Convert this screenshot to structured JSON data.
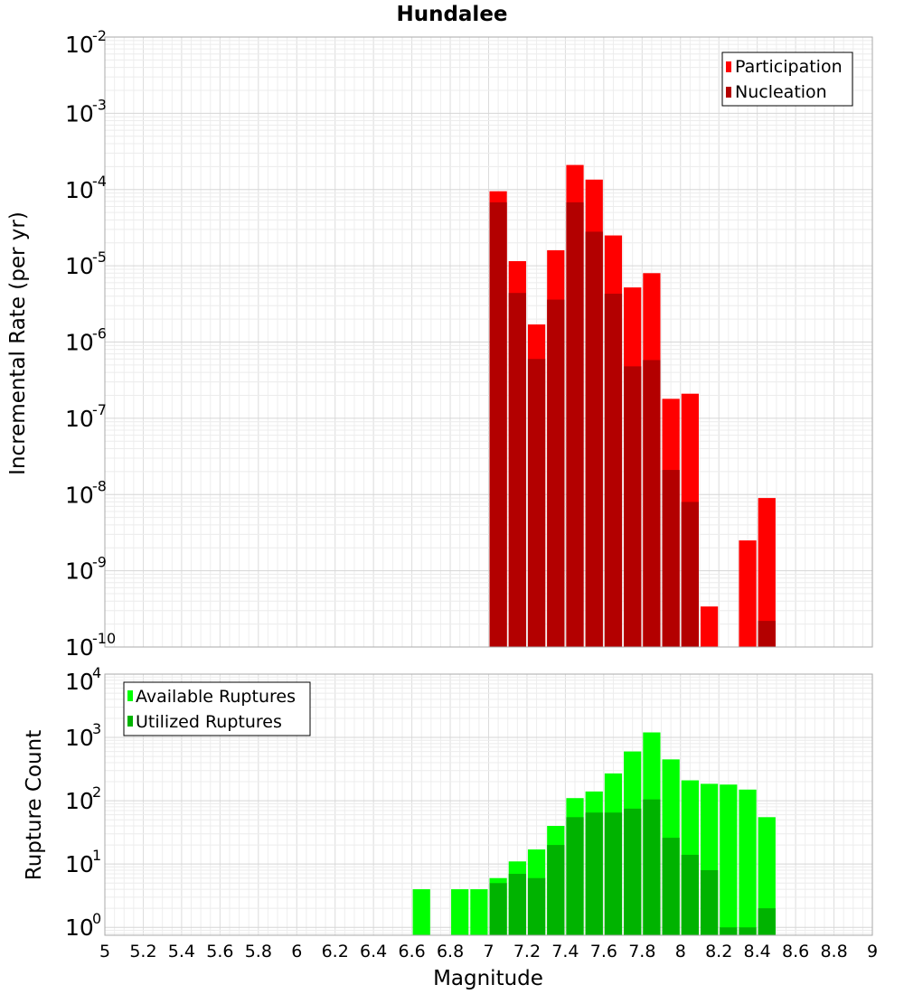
{
  "chart_data": [
    {
      "type": "bar",
      "title": "Hundalee",
      "ylabel": "Incremental Rate (per yr)",
      "xlabel": "",
      "xlim": [
        5,
        9
      ],
      "ylim": [
        1e-10,
        0.01
      ],
      "yscale": "log",
      "grid": true,
      "legend_position": "top-right",
      "bin_width": 0.1,
      "x": [
        7.05,
        7.15,
        7.25,
        7.35,
        7.45,
        7.55,
        7.65,
        7.75,
        7.85,
        7.95,
        8.05,
        8.15,
        8.25,
        8.35,
        8.45
      ],
      "series": [
        {
          "name": "Participation",
          "color": "#ff0000",
          "values": [
            9.5e-05,
            1.15e-05,
            1.7e-06,
            1.6e-05,
            0.00021,
            0.000135,
            2.5e-05,
            5.2e-06,
            8e-06,
            1.8e-07,
            2.1e-07,
            3.4e-10,
            null,
            2.5e-09,
            9e-09
          ]
        },
        {
          "name": "Nucleation",
          "color": "#b30000",
          "values": [
            6.8e-05,
            4.4e-06,
            6e-07,
            3.6e-06,
            6.8e-05,
            2.8e-05,
            4.3e-06,
            4.8e-07,
            5.8e-07,
            2.1e-08,
            8e-09,
            null,
            null,
            null,
            2.2e-10
          ]
        }
      ],
      "ytick_labels": [
        {
          "base": "10",
          "exp": "-10"
        },
        {
          "base": "10",
          "exp": "-9"
        },
        {
          "base": "10",
          "exp": "-8"
        },
        {
          "base": "10",
          "exp": "-7"
        },
        {
          "base": "10",
          "exp": "-6"
        },
        {
          "base": "10",
          "exp": "-5"
        },
        {
          "base": "10",
          "exp": "-4"
        },
        {
          "base": "10",
          "exp": "-3"
        },
        {
          "base": "10",
          "exp": "-2"
        }
      ]
    },
    {
      "type": "bar",
      "title": "",
      "ylabel": "Rupture Count",
      "xlabel": "Magnitude",
      "xlim": [
        5,
        9
      ],
      "ylim": [
        0.75,
        10000
      ],
      "yscale": "log",
      "grid": true,
      "legend_position": "top-left",
      "bin_width": 0.1,
      "x": [
        6.65,
        6.75,
        6.85,
        6.95,
        7.05,
        7.15,
        7.25,
        7.35,
        7.45,
        7.55,
        7.65,
        7.75,
        7.85,
        7.95,
        8.05,
        8.15,
        8.25,
        8.35,
        8.45
      ],
      "series": [
        {
          "name": "Available Ruptures",
          "color": "#00ff00",
          "values": [
            4,
            null,
            4,
            4,
            6,
            11,
            17,
            40,
            110,
            140,
            270,
            600,
            1200,
            450,
            210,
            185,
            180,
            150,
            55
          ]
        },
        {
          "name": "Utilized Ruptures",
          "color": "#00b300",
          "values": [
            null,
            null,
            null,
            null,
            5,
            7,
            6,
            20,
            55,
            65,
            65,
            75,
            105,
            26,
            14,
            8,
            1,
            1,
            2
          ]
        }
      ],
      "xticks": [
        "5",
        "5.2",
        "5.4",
        "5.6",
        "5.8",
        "6",
        "6.2",
        "6.4",
        "6.6",
        "6.8",
        "7",
        "7.2",
        "7.4",
        "7.6",
        "7.8",
        "8",
        "8.2",
        "8.4",
        "8.6",
        "8.8",
        "9"
      ],
      "ytick_labels": [
        {
          "base": "10",
          "exp": "0"
        },
        {
          "base": "10",
          "exp": "1"
        },
        {
          "base": "10",
          "exp": "2"
        },
        {
          "base": "10",
          "exp": "3"
        },
        {
          "base": "10",
          "exp": "4"
        }
      ]
    }
  ]
}
